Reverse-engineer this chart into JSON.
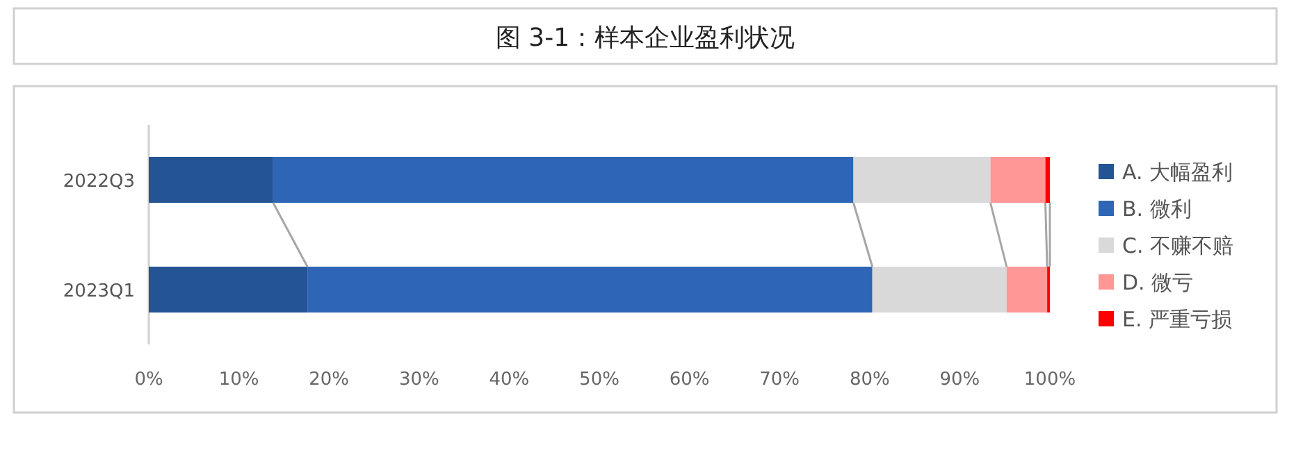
{
  "chart_data": {
    "type": "bar",
    "orientation": "horizontal",
    "stacked": true,
    "title": "图 3-1：样本企业盈利状况",
    "categories": [
      "2022Q3",
      "2023Q1"
    ],
    "series": [
      {
        "name": "A. 大幅盈利",
        "color": "#245493",
        "values": [
          13.8,
          17.6
        ]
      },
      {
        "name": "B. 微利",
        "color": "#2e66b5",
        "values": [
          64.4,
          62.7
        ]
      },
      {
        "name": "C. 不赚不赔",
        "color": "#d9d9d9",
        "values": [
          15.2,
          14.9
        ]
      },
      {
        "name": "D. 微亏",
        "color": "#ff9797",
        "values": [
          6.1,
          4.5
        ]
      },
      {
        "name": "E. 严重亏损",
        "color": "#ff0000",
        "values": [
          0.5,
          0.3
        ]
      }
    ],
    "xlim": [
      0,
      100
    ],
    "xticks": [
      {
        "value": 0,
        "label": "0%"
      },
      {
        "value": 10,
        "label": "10%"
      },
      {
        "value": 20,
        "label": "20%"
      },
      {
        "value": 30,
        "label": "30%"
      },
      {
        "value": 40,
        "label": "40%"
      },
      {
        "value": 50,
        "label": "50%"
      },
      {
        "value": 60,
        "label": "60%"
      },
      {
        "value": 70,
        "label": "70%"
      },
      {
        "value": 80,
        "label": "80%"
      },
      {
        "value": 90,
        "label": "90%"
      },
      {
        "value": 100,
        "label": "100%"
      }
    ],
    "legend": "right",
    "grid": false
  }
}
